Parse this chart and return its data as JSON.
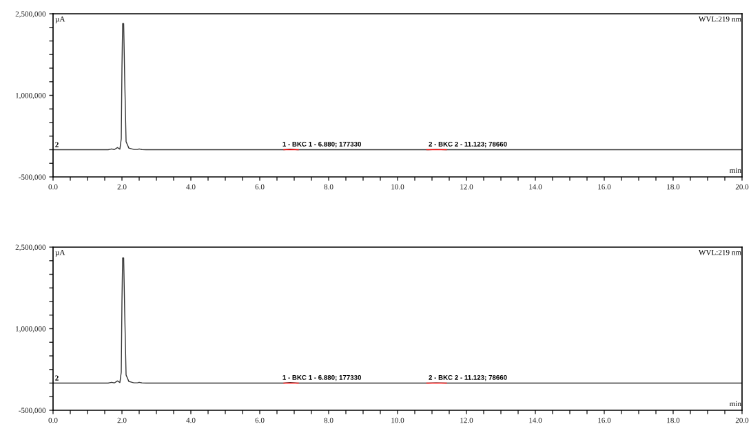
{
  "chart_data": [
    {
      "type": "line",
      "xlabel": "min",
      "ylabel": "µA",
      "xlim": [
        0,
        20
      ],
      "ylim": [
        -500000,
        2500000
      ],
      "xticks": [
        {
          "value": 0,
          "label": "0.0"
        },
        {
          "value": 0.5,
          "label": null
        },
        {
          "value": 1,
          "label": null
        },
        {
          "value": 1.5,
          "label": null
        },
        {
          "value": 2,
          "label": "2.0"
        },
        {
          "value": 2.5,
          "label": null
        },
        {
          "value": 3,
          "label": null
        },
        {
          "value": 3.5,
          "label": null
        },
        {
          "value": 4,
          "label": "4.0"
        },
        {
          "value": 4.5,
          "label": null
        },
        {
          "value": 5,
          "label": null
        },
        {
          "value": 5.5,
          "label": null
        },
        {
          "value": 6,
          "label": "6.0"
        },
        {
          "value": 6.5,
          "label": null
        },
        {
          "value": 7,
          "label": null
        },
        {
          "value": 7.5,
          "label": null
        },
        {
          "value": 8,
          "label": "8.0"
        },
        {
          "value": 8.5,
          "label": null
        },
        {
          "value": 9,
          "label": null
        },
        {
          "value": 9.5,
          "label": null
        },
        {
          "value": 10,
          "label": "10.0"
        },
        {
          "value": 10.5,
          "label": null
        },
        {
          "value": 11,
          "label": null
        },
        {
          "value": 11.5,
          "label": null
        },
        {
          "value": 12,
          "label": "12.0"
        },
        {
          "value": 12.5,
          "label": null
        },
        {
          "value": 13,
          "label": null
        },
        {
          "value": 13.5,
          "label": null
        },
        {
          "value": 14,
          "label": "14.0"
        },
        {
          "value": 14.5,
          "label": null
        },
        {
          "value": 15,
          "label": null
        },
        {
          "value": 15.5,
          "label": null
        },
        {
          "value": 16,
          "label": "16.0"
        },
        {
          "value": 16.5,
          "label": null
        },
        {
          "value": 17,
          "label": null
        },
        {
          "value": 17.5,
          "label": null
        },
        {
          "value": 18,
          "label": "18.0"
        },
        {
          "value": 18.5,
          "label": null
        },
        {
          "value": 19,
          "label": null
        },
        {
          "value": 19.5,
          "label": null
        },
        {
          "value": 20,
          "label": "20.0"
        }
      ],
      "yticks": [
        {
          "value": -500000,
          "label": "-500,000"
        },
        {
          "value": -250000,
          "label": null
        },
        {
          "value": 0,
          "label": null
        },
        {
          "value": 250000,
          "label": null
        },
        {
          "value": 500000,
          "label": null
        },
        {
          "value": 750000,
          "label": null
        },
        {
          "value": 1000000,
          "label": "1,000,000"
        },
        {
          "value": 1250000,
          "label": null
        },
        {
          "value": 1500000,
          "label": null
        },
        {
          "value": 1750000,
          "label": null
        },
        {
          "value": 2000000,
          "label": null
        },
        {
          "value": 2250000,
          "label": null
        },
        {
          "value": 2500000,
          "label": "2,500,000"
        }
      ],
      "grid": false,
      "legend": false,
      "series": [
        {
          "color": "#333333",
          "x": [
            0,
            1.6,
            1.7,
            1.78,
            1.87,
            1.94,
            1.98,
            2.0,
            2.02,
            2.05,
            2.08,
            2.12,
            2.2,
            2.35,
            2.45,
            2.5,
            2.58,
            2.7,
            6.7,
            6.88,
            7.1,
            10.9,
            11.12,
            11.4,
            20
          ],
          "values": [
            0,
            0,
            15000,
            3000,
            40000,
            10000,
            200000,
            1500000,
            2320000,
            2320000,
            1300000,
            150000,
            30000,
            5000,
            5000,
            15000,
            3000,
            0,
            0,
            10000,
            0,
            0,
            5000,
            0,
            0
          ]
        },
        {
          "color": "#ff0000",
          "x": [
            6.7,
            7.12
          ],
          "values": [
            0,
            0
          ]
        },
        {
          "color": "#ff0000",
          "x": [
            10.85,
            11.42
          ],
          "values": [
            0,
            0
          ]
        }
      ],
      "annotations": [
        "WVL:219 nm",
        {
          "text": "2",
          "x": 0,
          "y": 0
        },
        {
          "text": "1 - BKC 1 - 6.880; 177330",
          "x": 6.88,
          "y": 0
        },
        {
          "text": "2 - BKC 2 - 11.123; 78660",
          "x": 11.123,
          "y": 0
        }
      ]
    },
    {
      "type": "line",
      "xlabel": "min",
      "ylabel": "µA",
      "xlim": [
        0,
        20
      ],
      "ylim": [
        -500000,
        2500000
      ],
      "xticks": [
        {
          "value": 0,
          "label": "0.0"
        },
        {
          "value": 0.5,
          "label": null
        },
        {
          "value": 1,
          "label": null
        },
        {
          "value": 1.5,
          "label": null
        },
        {
          "value": 2,
          "label": "2.0"
        },
        {
          "value": 2.5,
          "label": null
        },
        {
          "value": 3,
          "label": null
        },
        {
          "value": 3.5,
          "label": null
        },
        {
          "value": 4,
          "label": "4.0"
        },
        {
          "value": 4.5,
          "label": null
        },
        {
          "value": 5,
          "label": null
        },
        {
          "value": 5.5,
          "label": null
        },
        {
          "value": 6,
          "label": "6.0"
        },
        {
          "value": 6.5,
          "label": null
        },
        {
          "value": 7,
          "label": null
        },
        {
          "value": 7.5,
          "label": null
        },
        {
          "value": 8,
          "label": "8.0"
        },
        {
          "value": 8.5,
          "label": null
        },
        {
          "value": 9,
          "label": null
        },
        {
          "value": 9.5,
          "label": null
        },
        {
          "value": 10,
          "label": "10.0"
        },
        {
          "value": 10.5,
          "label": null
        },
        {
          "value": 11,
          "label": null
        },
        {
          "value": 11.5,
          "label": null
        },
        {
          "value": 12,
          "label": "12.0"
        },
        {
          "value": 12.5,
          "label": null
        },
        {
          "value": 13,
          "label": null
        },
        {
          "value": 13.5,
          "label": null
        },
        {
          "value": 14,
          "label": "14.0"
        },
        {
          "value": 14.5,
          "label": null
        },
        {
          "value": 15,
          "label": null
        },
        {
          "value": 15.5,
          "label": null
        },
        {
          "value": 16,
          "label": "16.0"
        },
        {
          "value": 16.5,
          "label": null
        },
        {
          "value": 17,
          "label": null
        },
        {
          "value": 17.5,
          "label": null
        },
        {
          "value": 18,
          "label": "18.0"
        },
        {
          "value": 18.5,
          "label": null
        },
        {
          "value": 19,
          "label": null
        },
        {
          "value": 19.5,
          "label": null
        },
        {
          "value": 20,
          "label": "20.0"
        }
      ],
      "yticks": [
        {
          "value": -500000,
          "label": "-500,000"
        },
        {
          "value": -250000,
          "label": null
        },
        {
          "value": 0,
          "label": null
        },
        {
          "value": 250000,
          "label": null
        },
        {
          "value": 500000,
          "label": null
        },
        {
          "value": 750000,
          "label": null
        },
        {
          "value": 1000000,
          "label": "1,000,000"
        },
        {
          "value": 1250000,
          "label": null
        },
        {
          "value": 1500000,
          "label": null
        },
        {
          "value": 1750000,
          "label": null
        },
        {
          "value": 2000000,
          "label": null
        },
        {
          "value": 2250000,
          "label": null
        },
        {
          "value": 2500000,
          "label": "2,500,000"
        }
      ],
      "grid": false,
      "legend": false,
      "series": [
        {
          "color": "#333333",
          "x": [
            0,
            1.6,
            1.7,
            1.78,
            1.87,
            1.94,
            1.98,
            2.0,
            2.02,
            2.05,
            2.08,
            2.12,
            2.2,
            2.35,
            2.45,
            2.5,
            2.58,
            2.7,
            6.7,
            6.88,
            7.1,
            10.9,
            11.12,
            11.4,
            20
          ],
          "values": [
            0,
            0,
            15000,
            3000,
            40000,
            10000,
            200000,
            1500000,
            2300000,
            2300000,
            1300000,
            150000,
            30000,
            5000,
            5000,
            15000,
            3000,
            0,
            0,
            10000,
            0,
            0,
            5000,
            0,
            0
          ]
        },
        {
          "color": "#ff0000",
          "x": [
            6.7,
            7.12
          ],
          "values": [
            0,
            0
          ]
        },
        {
          "color": "#ff0000",
          "x": [
            10.85,
            11.42
          ],
          "values": [
            0,
            0
          ]
        }
      ],
      "annotations": [
        "WVL:219 nm",
        {
          "text": "2",
          "x": 0,
          "y": 0
        },
        {
          "text": "1 - BKC 1 - 6.880; 177330",
          "x": 6.88,
          "y": 0
        },
        {
          "text": "2 - BKC 2 - 11.123; 78660",
          "x": 11.123,
          "y": 0
        }
      ]
    }
  ]
}
